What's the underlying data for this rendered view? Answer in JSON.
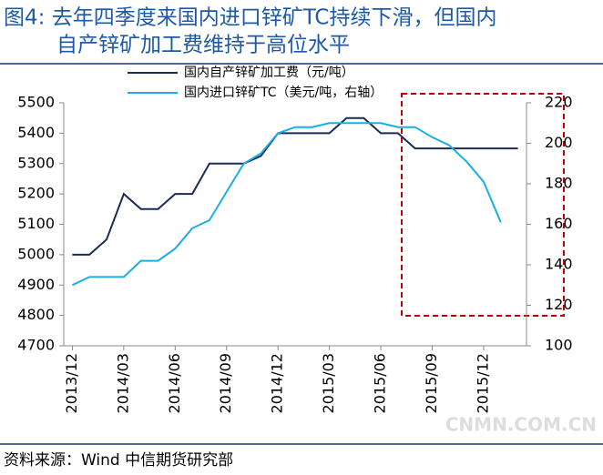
{
  "chart_data": {
    "type": "line",
    "title": [
      "图4: 去年四季度来国内进口锌矿TC持续下滑，但国内",
      "自产锌矿加工费维持于高位水平"
    ],
    "source": "资料来源：Wind 中信期货研究部",
    "watermark": "CNMN.COM.CN",
    "categories": [
      "2013/12",
      null,
      null,
      "2014/03",
      null,
      null,
      "2014/06",
      null,
      null,
      "2014/09",
      null,
      null,
      "2014/12",
      null,
      null,
      "2015/03",
      null,
      null,
      "2015/06",
      null,
      null,
      "2015/09",
      null,
      null,
      "2015/12",
      null,
      null
    ],
    "series": [
      {
        "name": "国内自产锌矿加工费（元/吨）",
        "color": "#1b2a56",
        "values": [
          5000,
          5000,
          5050,
          5200,
          5150,
          5150,
          5200,
          5200,
          5300,
          5300,
          5300,
          5325,
          5400,
          5400,
          5400,
          5400,
          5450,
          5450,
          5400,
          5400,
          5350,
          5350,
          5350,
          5350,
          5350,
          5350,
          5350
        ]
      },
      {
        "name": "国内进口锌矿TC（美元/吨，右轴）",
        "color": "#1aaee5",
        "axis": "y2",
        "values": [
          130,
          134,
          134,
          134,
          142,
          142,
          148,
          158,
          162,
          176,
          190,
          195,
          205,
          208,
          208,
          210,
          210,
          210,
          210,
          208,
          208,
          203,
          199,
          191,
          181,
          161,
          null
        ]
      }
    ],
    "ylim": [
      4700,
      5500
    ],
    "yticks": [
      4700,
      4800,
      4900,
      5000,
      5100,
      5200,
      5300,
      5400,
      5500
    ],
    "y2lim": [
      100,
      220
    ],
    "y2ticks": [
      100,
      120,
      140,
      160,
      180,
      200,
      220
    ]
  }
}
